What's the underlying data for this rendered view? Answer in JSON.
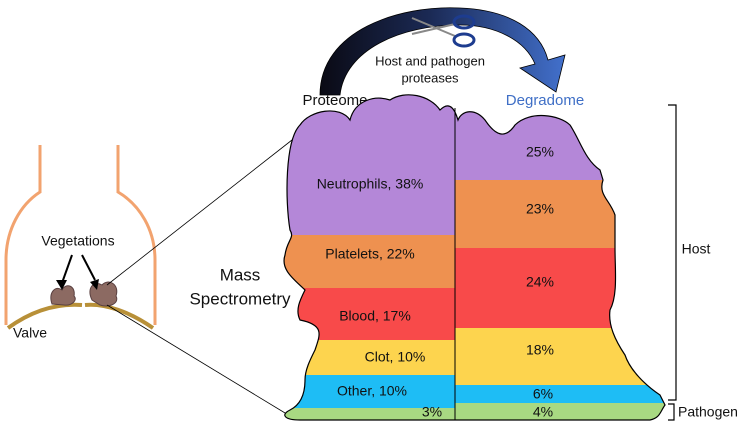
{
  "labels": {
    "proteome": "Proteome",
    "degradome": "Degradome",
    "proteases": [
      "Host and pathogen",
      "proteases"
    ],
    "method": [
      "Mass",
      "Spectrometry"
    ],
    "vegetations": "Vegetations",
    "valve": "Valve",
    "host": "Host",
    "pathogen": "Pathogen"
  },
  "proteome": [
    "Neutrophils, 38%",
    "Platelets, 22%",
    "Blood, 17%",
    "Clot, 10%",
    "Other, 10%",
    "3%"
  ],
  "degradome": [
    "25%",
    "23%",
    "24%",
    "18%",
    "6%",
    "4%"
  ]
}
